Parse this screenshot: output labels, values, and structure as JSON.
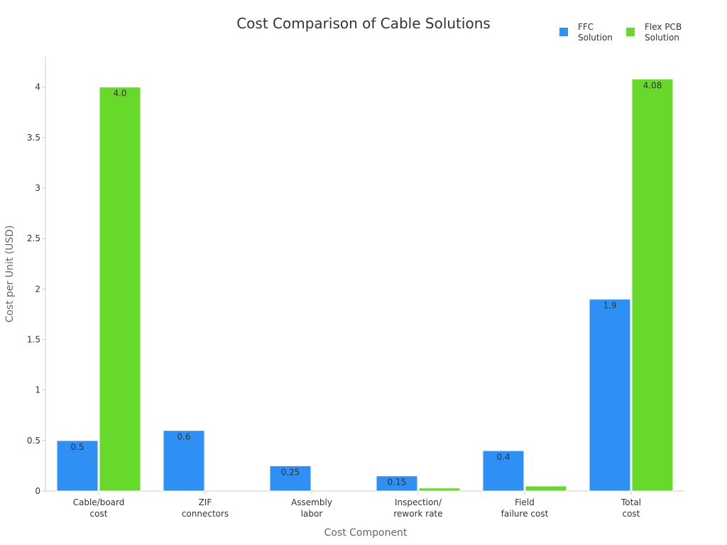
{
  "chart_data": {
    "type": "bar",
    "title": "Cost Comparison of Cable Solutions",
    "xlabel": "Cost Component",
    "ylabel": "Cost per Unit (USD)",
    "ylim": [
      0,
      4.3
    ],
    "yticks": [
      "0",
      "0.5",
      "1",
      "1.5",
      "2",
      "2.5",
      "3",
      "3.5",
      "4"
    ],
    "legend_position": "top-right",
    "grid": false,
    "categories": [
      [
        "Cable/board",
        "cost"
      ],
      [
        "ZIF",
        "connectors"
      ],
      [
        "Assembly",
        "labor"
      ],
      [
        "Inspection/",
        "rework rate"
      ],
      [
        "Field",
        "failure cost"
      ],
      [
        "Total",
        "cost"
      ]
    ],
    "series": [
      {
        "name": [
          "FFC",
          "Solution"
        ],
        "color": "#2e90f5",
        "values": [
          0.5,
          0.6,
          0.25,
          0.15,
          0.4,
          1.9
        ],
        "labels": [
          "0.5",
          "0.6",
          "0.25",
          "0.15",
          "0.4",
          "1.9"
        ]
      },
      {
        "name": [
          "Flex PCB",
          "Solution"
        ],
        "color": "#66d92a",
        "values": [
          4.0,
          0,
          0,
          0.03,
          0.05,
          4.08
        ],
        "labels": [
          "4.0",
          "",
          "",
          "",
          "",
          "4.08"
        ]
      }
    ]
  }
}
